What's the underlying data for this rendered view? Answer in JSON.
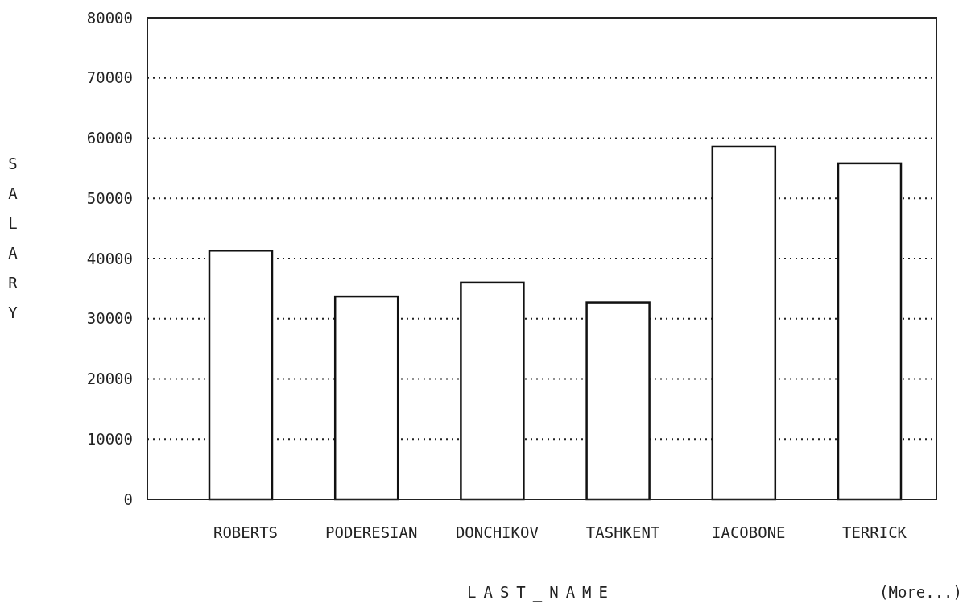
{
  "chart_data": {
    "type": "bar",
    "xlabel": "LAST_NAME",
    "ylabel": "SALARY",
    "categories": [
      "ROBERTS",
      "PODERESIAN",
      "DONCHIKOV",
      "TASHKENT",
      "IACOBONE",
      "TERRICK"
    ],
    "values": [
      41300,
      33700,
      36000,
      32700,
      58600,
      55800
    ],
    "color": "#ffffff",
    "ylim": [
      0,
      80000
    ],
    "yticks": [
      0,
      10000,
      20000,
      30000,
      40000,
      50000,
      60000,
      70000,
      80000
    ],
    "grid": "y",
    "annotations": [
      "(More...)"
    ]
  }
}
